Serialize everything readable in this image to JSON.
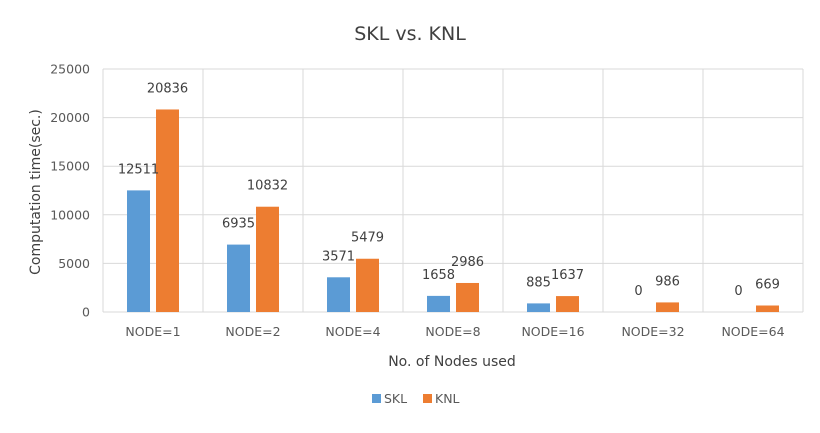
{
  "chart_data": {
    "type": "bar",
    "title": "SKL vs. KNL",
    "xlabel": "No. of Nodes used",
    "ylabel": "Computation time(sec.)",
    "ylim": [
      0,
      25000
    ],
    "yticks": [
      0,
      5000,
      10000,
      15000,
      20000,
      25000
    ],
    "grid": true,
    "legend_position": "bottom",
    "categories": [
      "NODE=1",
      "NODE=2",
      "NODE=4",
      "NODE=8",
      "NODE=16",
      "NODE=32",
      "NODE=64"
    ],
    "series": [
      {
        "name": "SKL",
        "color": "#5B9BD5",
        "values": [
          12511,
          6935,
          3571,
          1658,
          885,
          0,
          0
        ]
      },
      {
        "name": "KNL",
        "color": "#ED7D31",
        "values": [
          20836,
          10832,
          5479,
          2986,
          1637,
          986,
          669
        ]
      }
    ]
  }
}
